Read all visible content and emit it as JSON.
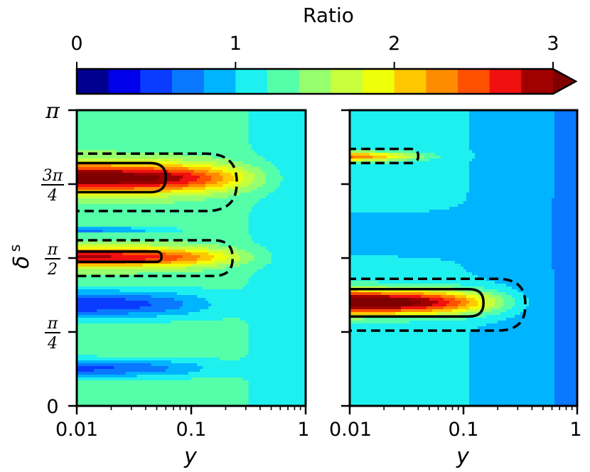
{
  "colorbar": {
    "title": "Ratio",
    "ticks": [
      "0",
      "1",
      "2",
      "3"
    ],
    "tick_values": [
      0,
      1,
      2,
      3
    ],
    "range": [
      0,
      3
    ],
    "levels": 15,
    "extend": "max",
    "colors": [
      "#00008f",
      "#0000ea",
      "#0a3cff",
      "#0a78ff",
      "#00b4ff",
      "#1ef0f0",
      "#55ffaa",
      "#96ff6e",
      "#c8ff3c",
      "#f0ff0a",
      "#ffc800",
      "#ff8c00",
      "#ff5000",
      "#f01010",
      "#a00000",
      "#800000"
    ]
  },
  "chart_data": [
    {
      "type": "heatmap",
      "panel": "left",
      "xlabel": "y",
      "ylabel_main": "δ",
      "ylabel_sup": "s",
      "xscale": "log",
      "xlim": [
        0.01,
        1
      ],
      "ylim": [
        0,
        3.14159
      ],
      "x_tick_labels": [
        "0.01",
        "0.1",
        "1"
      ],
      "x_tick_values": [
        0.01,
        0.1,
        1
      ],
      "y_tick_values": [
        0,
        0.7854,
        1.5708,
        2.3562,
        3.14159
      ],
      "y_tick_labels": {
        "zero": "0",
        "pi": "π",
        "pi_quarter_num": "π",
        "pi_half_num": "π",
        "three_pi_quarter_num": "3π",
        "den_4": "4",
        "den_2": "2"
      },
      "background_ratio": 1.35,
      "features": [
        {
          "kind": "hot",
          "center_delta": 2.42,
          "peak_ratio": 3.3,
          "extent_y": 0.25,
          "width_delta": 0.15
        },
        {
          "kind": "hot",
          "center_delta": 1.58,
          "peak_ratio": 2.9,
          "extent_y": 0.2,
          "width_delta": 0.1
        },
        {
          "kind": "cold",
          "center_delta": 1.87,
          "peak_ratio": 0.5,
          "extent_y": 0.05,
          "width_delta": 0.03
        },
        {
          "kind": "cold",
          "center_delta": 1.08,
          "peak_ratio": 0.35,
          "extent_y": 0.12,
          "width_delta": 0.15
        },
        {
          "kind": "cold",
          "center_delta": 0.4,
          "peak_ratio": 0.5,
          "extent_y": 0.12,
          "width_delta": 0.1
        }
      ],
      "contours": [
        {
          "level": 2.5,
          "style": "solid",
          "region_delta": [
            2.27,
            2.58
          ],
          "max_y": 0.06
        },
        {
          "level": 2.0,
          "style": "dashed",
          "region_delta": [
            2.07,
            2.68
          ],
          "max_y": 0.25
        },
        {
          "level": 2.5,
          "style": "solid",
          "region_delta": [
            1.53,
            1.64
          ],
          "max_y": 0.055
        },
        {
          "level": 2.0,
          "style": "dashed",
          "region_delta": [
            1.38,
            1.76
          ],
          "max_y": 0.23
        }
      ]
    },
    {
      "type": "heatmap",
      "panel": "right",
      "xlabel": "y",
      "xscale": "log",
      "xlim": [
        0.01,
        1
      ],
      "ylim": [
        0,
        3.14159
      ],
      "x_tick_labels": [
        "0.01",
        "0.1",
        "1"
      ],
      "x_tick_values": [
        0.01,
        0.1,
        1
      ],
      "background_ratio": 1.05,
      "features": [
        {
          "kind": "hot",
          "center_delta": 2.65,
          "peak_ratio": 2.9,
          "extent_y": 0.03,
          "width_delta": 0.05
        },
        {
          "kind": "hot",
          "center_delta": 1.1,
          "peak_ratio": 3.5,
          "extent_y": 0.15,
          "width_delta": 0.13
        },
        {
          "kind": "cold",
          "center_delta": 1.82,
          "peak_ratio": 0.85,
          "extent_y": 0.2,
          "width_delta": 0.2
        }
      ],
      "contours": [
        {
          "level": 2.0,
          "style": "dashed",
          "region_delta": [
            2.58,
            2.73
          ],
          "max_y": 0.04
        },
        {
          "level": 2.5,
          "style": "solid",
          "region_delta": [
            0.95,
            1.24
          ],
          "max_y": 0.15
        },
        {
          "level": 2.0,
          "style": "dashed",
          "region_delta": [
            0.8,
            1.35
          ],
          "max_y": 0.35
        }
      ]
    }
  ]
}
